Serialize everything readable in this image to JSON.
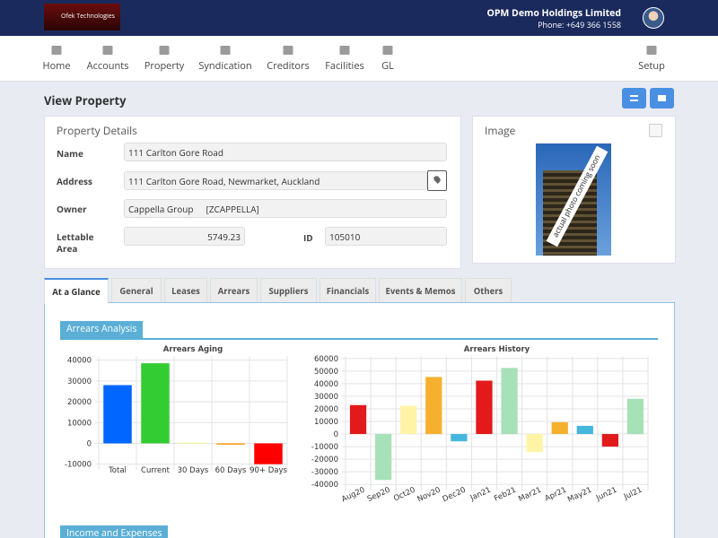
{
  "header": {
    "logo": "Ofek Technologies",
    "company": "OPM Demo Holdings Limited",
    "phone": "Phone: +649 366 1558"
  },
  "nav": [
    "Home",
    "Accounts",
    "Property",
    "Syndication",
    "Creditors",
    "Facilities",
    "GL",
    "Setup"
  ],
  "page_title": "View Property",
  "property_details": {
    "title": "Property Details",
    "name_label": "Name",
    "name": "111 Carlton Gore Road",
    "address_label": "Address",
    "address": "111 Carlton Gore Road, Newmarket, Auckland",
    "owner_label": "Owner",
    "owner_name": "Cappella Group",
    "owner_code": "[ZCAPPELLA]",
    "area_label": "Lettable Area",
    "area": "5749.23",
    "id_label": "ID",
    "id": "105010"
  },
  "image": {
    "title": "Image",
    "caption": "actual photo coming soon"
  },
  "tabs": [
    "At a Glance",
    "General",
    "Leases",
    "Arrears",
    "Suppliers",
    "Financials",
    "Events & Memos",
    "Others"
  ],
  "sections": [
    "Arrears Analysis",
    "Income and Expenses"
  ],
  "chart_data": [
    {
      "type": "bar",
      "title": "Arrears Aging",
      "categories": [
        "Total",
        "Current",
        "30 Days",
        "60 Days",
        "90+ Days"
      ],
      "values": [
        28000,
        38500,
        300,
        -600,
        -10000
      ],
      "colors": [
        "#0066ff",
        "#33cc33",
        "#ffff66",
        "#ff9900",
        "#ff0000"
      ],
      "ylim": [
        -11000,
        42000
      ],
      "yticks": [
        -10000,
        0,
        10000,
        20000,
        30000,
        40000
      ],
      "grid": true
    },
    {
      "type": "bar",
      "title": "Arrears History",
      "categories": [
        "Aug20",
        "Sep20",
        "Oct20",
        "Nov20",
        "Dec20",
        "Jan21",
        "Feb21",
        "Mar21",
        "Apr21",
        "May21",
        "Jun21",
        "Jul21"
      ],
      "values": [
        23000,
        -36500,
        22300,
        45300,
        -5800,
        42400,
        52500,
        -14400,
        9400,
        6500,
        -10000,
        28000
      ],
      "colors": [
        "#e31a1c",
        "#a6e1b8",
        "#fff3a6",
        "#f5b02e",
        "#45b6de",
        "#e31a1c",
        "#a6e1b8",
        "#fff3a6",
        "#f5b02e",
        "#45b6de",
        "#e31a1c",
        "#a6e1b8"
      ],
      "ylim": [
        -42000,
        62000
      ],
      "yticks": [
        -40000,
        -30000,
        -20000,
        -10000,
        0,
        10000,
        20000,
        30000,
        40000,
        50000,
        60000
      ],
      "grid": true
    }
  ]
}
